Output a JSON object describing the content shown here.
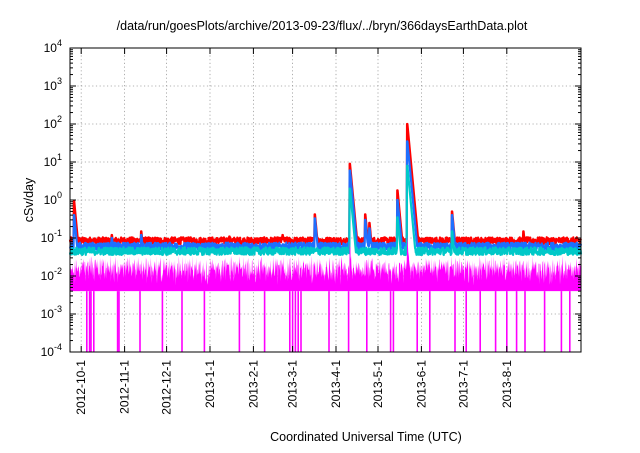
{
  "chart_data": {
    "type": "line",
    "title": "/data/run/goesPlots/archive/2013-09-23/flux/../bryn/366daysEarthData.plot",
    "xlabel": "Coordinated Universal Time (UTC)",
    "ylabel": "cSv/day",
    "yscale": "log",
    "ylim": [
      0.0001,
      10000
    ],
    "xlim": [
      "2012-09-23",
      "2013-09-23"
    ],
    "grid": true,
    "legend": "none",
    "x_ticks": [
      "2012-10-1",
      "2012-11-1",
      "2012-12-1",
      "2013-1-1",
      "2013-2-1",
      "2013-3-1",
      "2013-4-1",
      "2013-5-1",
      "2013-6-1",
      "2013-7-1",
      "2013-8-1"
    ],
    "y_ticks": [
      {
        "value": 0.0001,
        "base": "10",
        "exp": "-4"
      },
      {
        "value": 0.001,
        "base": "10",
        "exp": "-3"
      },
      {
        "value": 0.01,
        "base": "10",
        "exp": "-2"
      },
      {
        "value": 0.1,
        "base": "10",
        "exp": "-1"
      },
      {
        "value": 1,
        "base": "10",
        "exp": "0"
      },
      {
        "value": 10,
        "base": "10",
        "exp": "1"
      },
      {
        "value": 100,
        "base": "10",
        "exp": "2"
      },
      {
        "value": 1000,
        "base": "10",
        "exp": "3"
      },
      {
        "value": 10000,
        "base": "10",
        "exp": "4"
      }
    ],
    "series": [
      {
        "color": "#ff0000",
        "baseline": 0.085,
        "noise": 0.18,
        "peaks": [
          [
            "2012-09-26",
            0.95
          ],
          [
            "2012-10-23",
            0.12
          ],
          [
            "2012-11-13",
            0.15
          ],
          [
            "2013-01-15",
            0.11
          ],
          [
            "2013-02-22",
            0.12
          ],
          [
            "2013-03-17",
            0.42
          ],
          [
            "2013-04-11",
            9.0
          ],
          [
            "2013-04-22",
            0.42
          ],
          [
            "2013-04-25",
            0.25
          ],
          [
            "2013-05-15",
            1.8
          ],
          [
            "2013-05-22",
            100
          ],
          [
            "2013-06-23",
            0.5
          ],
          [
            "2013-08-13",
            0.15
          ]
        ]
      },
      {
        "color": "#1e6fff",
        "baseline": 0.06,
        "noise": 0.2,
        "peaks": [
          [
            "2012-09-26",
            0.4
          ],
          [
            "2012-10-23",
            0.1
          ],
          [
            "2012-11-13",
            0.12
          ],
          [
            "2013-03-17",
            0.33
          ],
          [
            "2013-04-11",
            6.0
          ],
          [
            "2013-04-22",
            0.3
          ],
          [
            "2013-04-25",
            0.18
          ],
          [
            "2013-05-15",
            1.0
          ],
          [
            "2013-05-22",
            35
          ],
          [
            "2013-06-23",
            0.4
          ]
        ]
      },
      {
        "color": "#00c8c8",
        "baseline": 0.045,
        "noise": 0.2,
        "peaks": [
          [
            "2013-04-11",
            2.0
          ],
          [
            "2013-05-15",
            0.35
          ],
          [
            "2013-05-22",
            8.0
          ],
          [
            "2013-06-23",
            0.15
          ]
        ]
      },
      {
        "color": "#ff00ff",
        "baseline": 0.022,
        "noise": 0.3,
        "floor": 0.004,
        "peaks": [
          [
            "2013-04-11",
            0.09
          ],
          [
            "2013-05-22",
            0.12
          ]
        ]
      }
    ]
  }
}
